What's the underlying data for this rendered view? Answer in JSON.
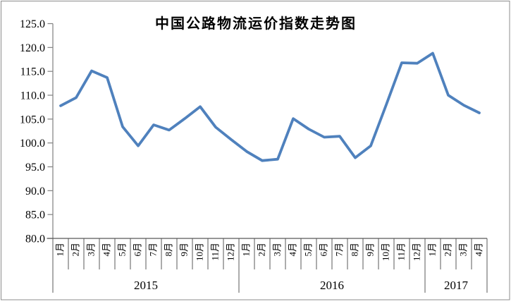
{
  "chart_data": {
    "type": "line",
    "title": "中国公路物流运价指数走势图",
    "grid": false,
    "legend": false,
    "ylim": [
      80,
      125
    ],
    "ytick_labels": [
      "125.0",
      "120.0",
      "115.0",
      "110.0",
      "105.0",
      "100.0",
      "95.0",
      "90.0",
      "85.0",
      "80.0"
    ],
    "x_groups": [
      {
        "year": "2015",
        "months": [
          "1月",
          "2月",
          "3月",
          "4月",
          "5月",
          "6月",
          "7月",
          "8月",
          "9月",
          "10月",
          "11月",
          "12月"
        ]
      },
      {
        "year": "2016",
        "months": [
          "1月",
          "2月",
          "3月",
          "4月",
          "5月",
          "6月",
          "7月",
          "8月",
          "9月",
          "10月",
          "11月",
          "12月"
        ]
      },
      {
        "year": "2017",
        "months": [
          "1月",
          "2月",
          "3月",
          "4月"
        ]
      }
    ],
    "series": [
      {
        "name": "中国公路物流运价指数",
        "values": [
          107.8,
          109.5,
          115.1,
          113.7,
          103.4,
          99.4,
          103.8,
          102.7,
          105.1,
          107.6,
          103.3,
          100.7,
          98.2,
          96.3,
          96.6,
          105.1,
          102.9,
          101.2,
          101.4,
          96.9,
          99.4,
          108.0,
          116.8,
          116.7,
          118.8,
          110.0,
          107.9,
          106.3
        ]
      }
    ],
    "colors": {
      "line": "#4F81BD",
      "y_axis": "#808080",
      "category_lines": "#595959",
      "border": "#8C8C8C",
      "text": "#000000"
    }
  }
}
